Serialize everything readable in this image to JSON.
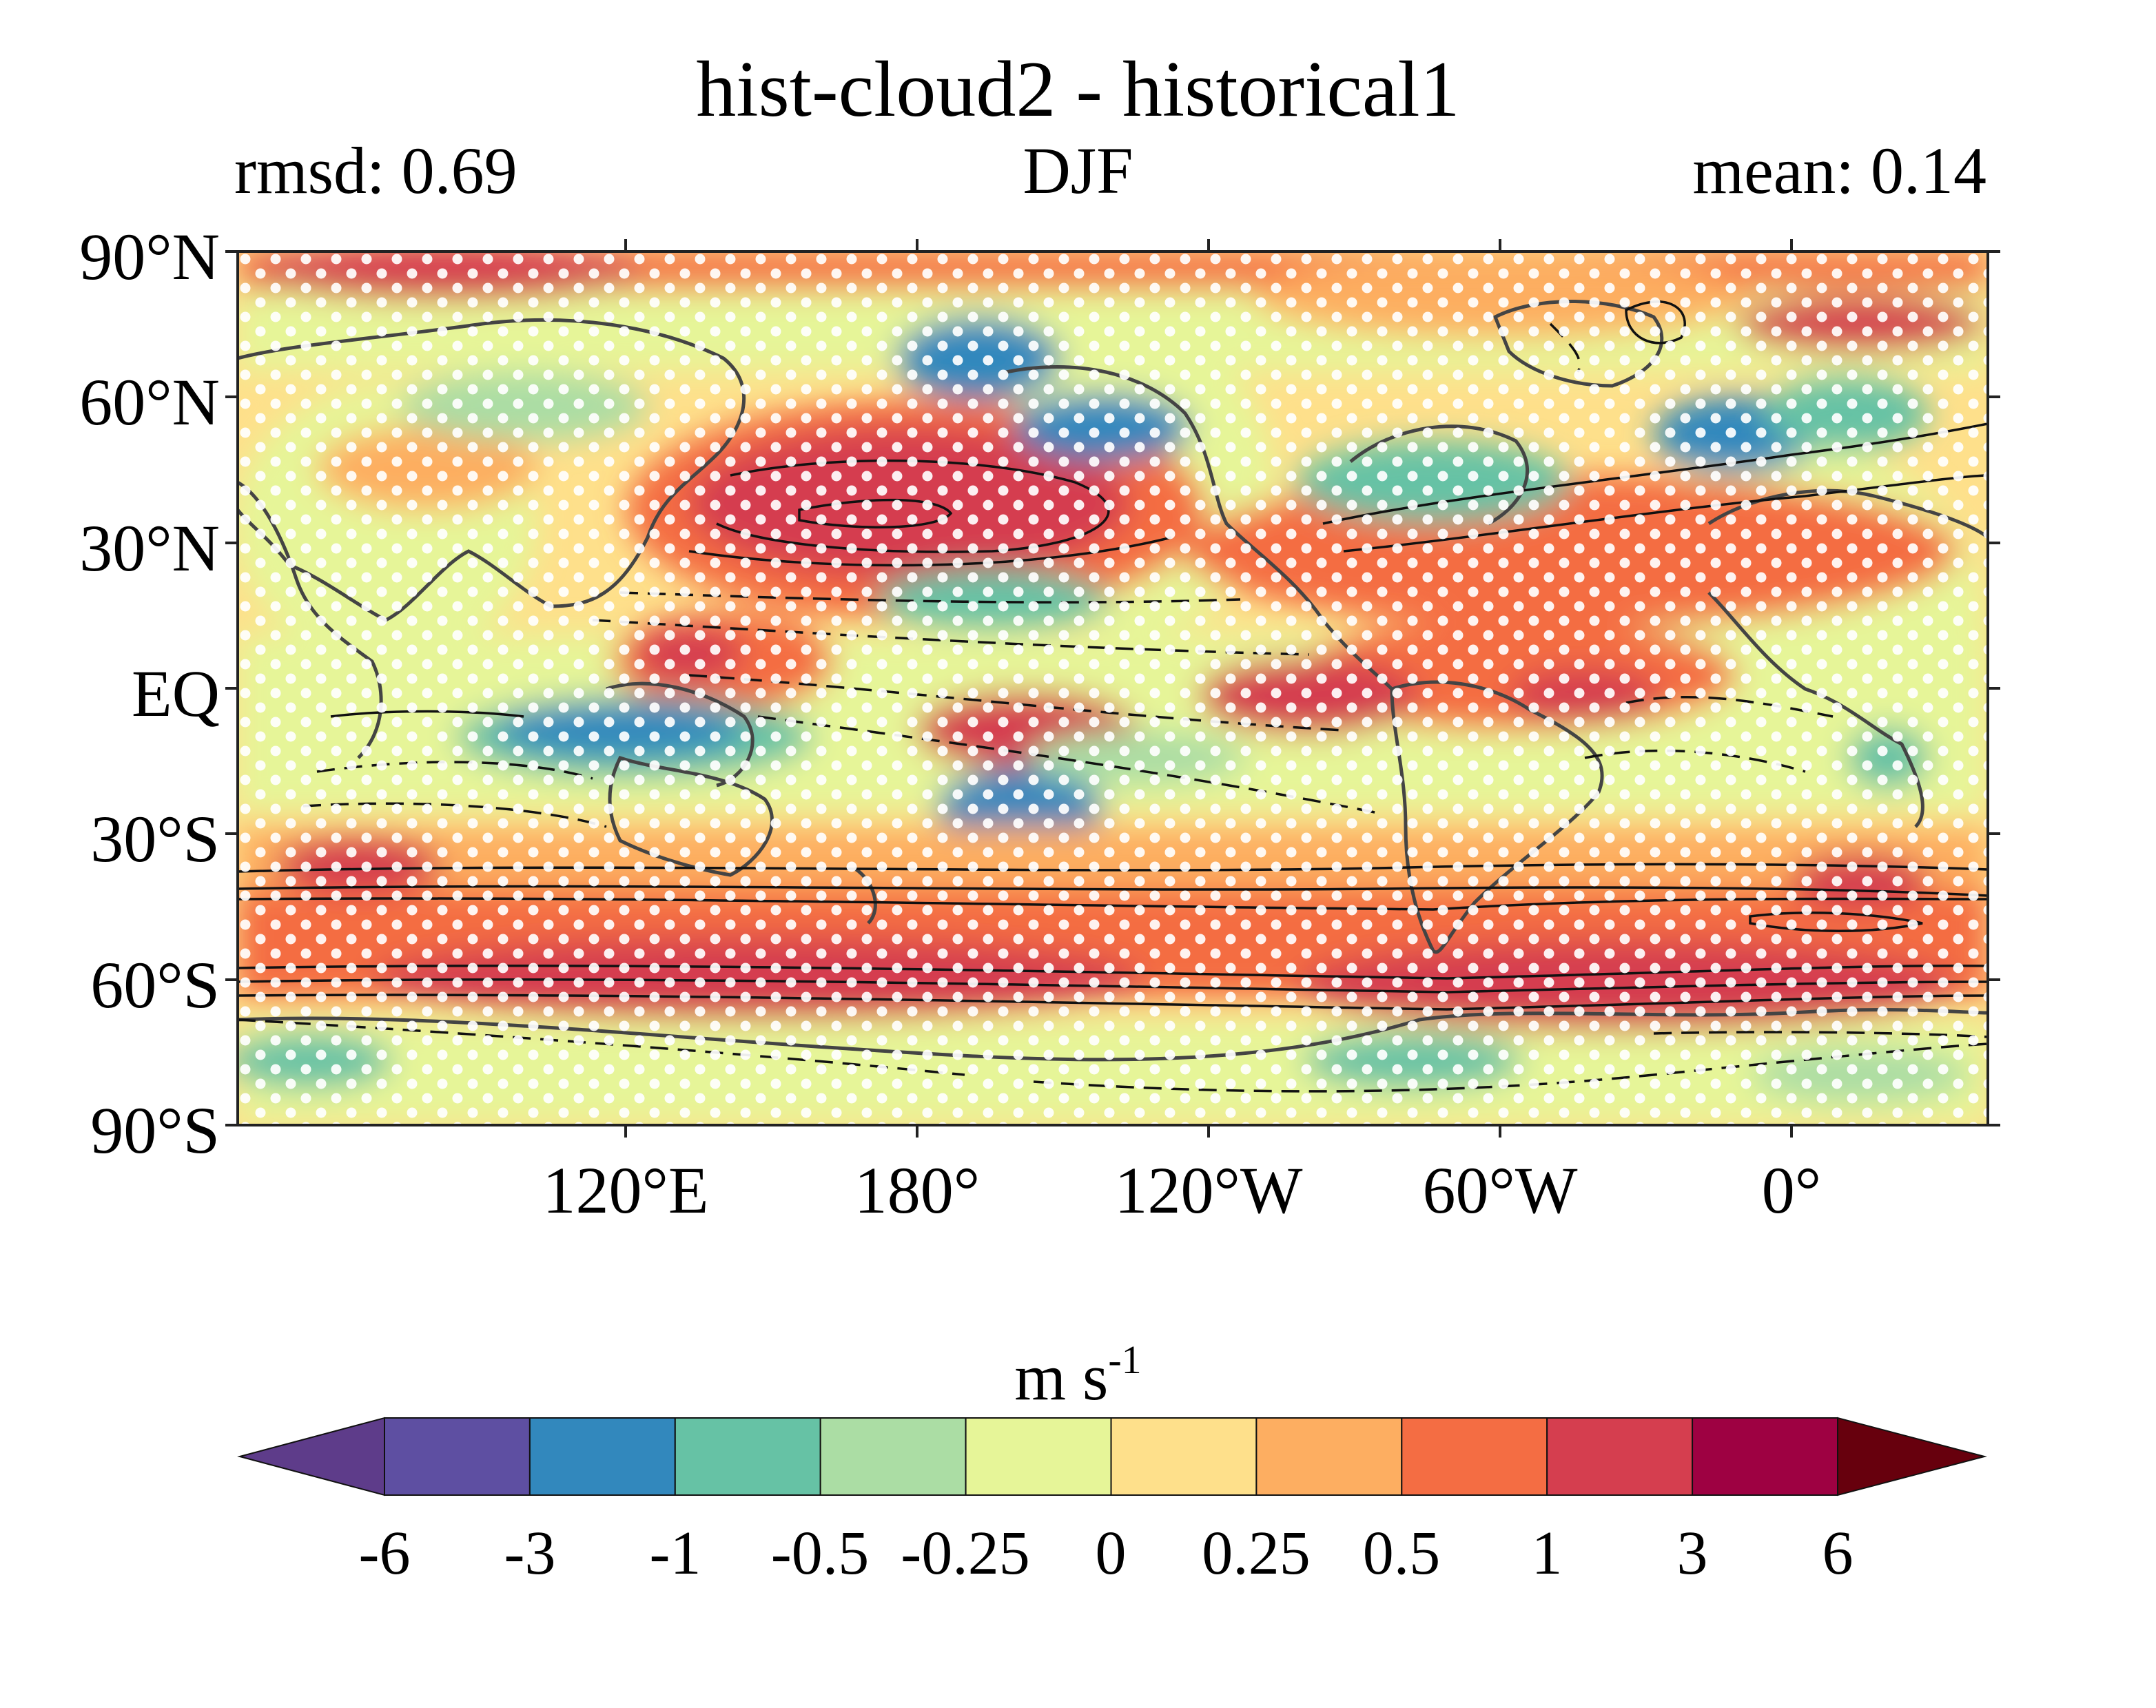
{
  "title": "hist-cloud2 - historical1",
  "subtitle_left": "rmsd: 0.69",
  "subtitle_center": "DJF",
  "subtitle_right": "mean: 0.14",
  "lat_labels": [
    "90°N",
    "60°N",
    "30°N",
    "EQ",
    "30°S",
    "60°S",
    "90°S"
  ],
  "lon_labels": [
    "120°E",
    "180°",
    "120°W",
    "60°W",
    "0°"
  ],
  "colorbar": {
    "units_base": "m s",
    "units_exp": "-1",
    "tick_labels": [
      "-6",
      "-3",
      "-1",
      "-0.5",
      "-0.25",
      "0",
      "0.25",
      "0.5",
      "1",
      "3",
      "6"
    ],
    "under_color": "#5e3c8a",
    "over_color": "#67000d",
    "colors": [
      "#5e4fa2",
      "#3288bd",
      "#66c2a5",
      "#abdda4",
      "#e6f598",
      "#fee08b",
      "#fdae61",
      "#f46d43",
      "#d53e4f",
      "#9e0142"
    ]
  },
  "map": {
    "lon_range": [
      40,
      400
    ],
    "lat_range": [
      -90,
      90
    ],
    "background_color": "#fee08b",
    "stippling_color": "#ffffff"
  }
}
